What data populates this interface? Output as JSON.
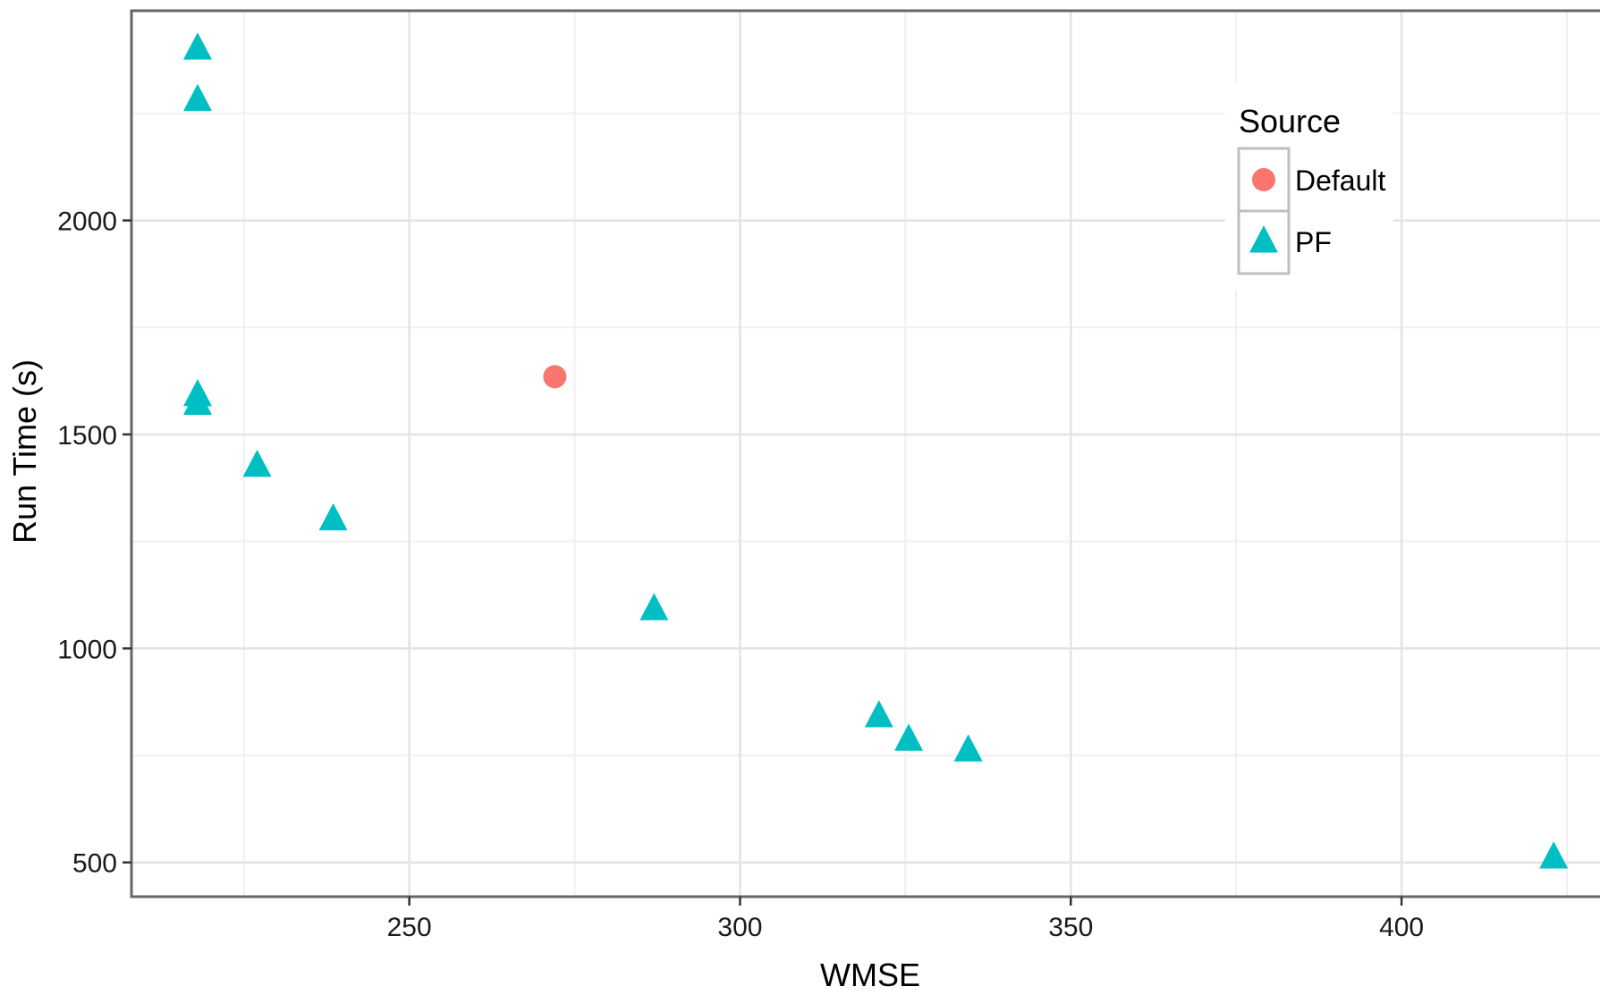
{
  "chart_data": {
    "type": "scatter",
    "title": "",
    "xlabel": "WMSE",
    "ylabel": "Run Time (s)",
    "xlim": [
      208,
      430
    ],
    "ylim": [
      420,
      2490
    ],
    "x_ticks": [
      250,
      300,
      350,
      400
    ],
    "y_ticks": [
      500,
      1000,
      1500,
      2000
    ],
    "grid": true,
    "legend": {
      "title": "Source",
      "placement": "top-right"
    },
    "series": [
      {
        "name": "Default",
        "marker": "circle",
        "color": "#F8766D",
        "points": [
          {
            "x": 272,
            "y": 1635
          }
        ]
      },
      {
        "name": "PF",
        "marker": "triangle",
        "color": "#00BFC4",
        "points": [
          {
            "x": 218,
            "y": 2400
          },
          {
            "x": 218,
            "y": 2280
          },
          {
            "x": 218,
            "y": 1590
          },
          {
            "x": 218,
            "y": 1570
          },
          {
            "x": 227,
            "y": 1425
          },
          {
            "x": 238.5,
            "y": 1300
          },
          {
            "x": 287,
            "y": 1090
          },
          {
            "x": 321,
            "y": 840
          },
          {
            "x": 325.5,
            "y": 785
          },
          {
            "x": 334.5,
            "y": 760
          },
          {
            "x": 423,
            "y": 510
          }
        ]
      }
    ]
  }
}
